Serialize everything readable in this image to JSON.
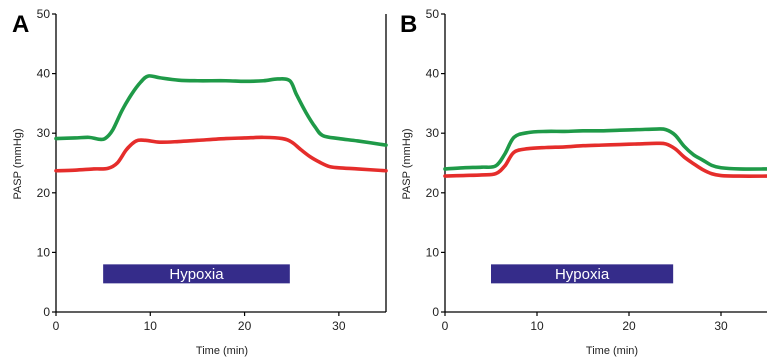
{
  "chart_data": [
    {
      "type": "line",
      "panel_label": "A",
      "xlabel": "Time (min)",
      "ylabel": "PASP (mmHg)",
      "xlim": [
        0,
        35
      ],
      "ylim": [
        0,
        50
      ],
      "xticks": [
        0,
        10,
        20,
        30
      ],
      "yticks": [
        0,
        10,
        20,
        30,
        40,
        50
      ],
      "grid": false,
      "series": [
        {
          "color": "#1f9a48",
          "x": [
            0,
            2,
            3.5,
            4.5,
            5.2,
            6,
            7,
            8,
            9,
            9.8,
            11,
            13,
            15,
            18,
            20,
            22,
            23.5,
            24.8,
            25.5,
            26.5,
            27.5,
            28.3,
            30,
            32,
            35
          ],
          "y": [
            29.1,
            29.2,
            29.3,
            29.0,
            29.1,
            30.5,
            33.8,
            36.5,
            38.6,
            39.6,
            39.3,
            38.9,
            38.8,
            38.8,
            38.7,
            38.8,
            39.1,
            38.8,
            36.5,
            33.5,
            31.0,
            29.6,
            29.1,
            28.7,
            28.0
          ]
        },
        {
          "color": "#e52d2b",
          "x": [
            0,
            2,
            4,
            5.5,
            6.5,
            7.5,
            8.5,
            9.5,
            11,
            13,
            15,
            18,
            20,
            22,
            24,
            25,
            26,
            27,
            28,
            29,
            30,
            32,
            35
          ],
          "y": [
            23.7,
            23.8,
            24.0,
            24.1,
            25.0,
            27.3,
            28.7,
            28.8,
            28.5,
            28.6,
            28.8,
            29.1,
            29.2,
            29.3,
            29.1,
            28.5,
            27.2,
            26.0,
            25.1,
            24.4,
            24.2,
            24.0,
            23.7
          ]
        }
      ],
      "annotations": [
        {
          "text": "Hypoxia",
          "x_start": 5,
          "x_end": 24.8,
          "y_center": 6.4,
          "color": "#352c8a"
        }
      ]
    },
    {
      "type": "line",
      "panel_label": "B",
      "xlabel": "Time (min)",
      "ylabel": "PASP (mmHg)",
      "xlim": [
        0,
        35
      ],
      "ylim": [
        0,
        50
      ],
      "xticks": [
        0,
        10,
        20,
        30
      ],
      "yticks": [
        0,
        10,
        20,
        30,
        40,
        50
      ],
      "grid": false,
      "series": [
        {
          "color": "#1f9a48",
          "x": [
            0,
            2,
            4,
            5.5,
            6.5,
            7.5,
            9,
            11,
            13,
            15,
            17,
            19,
            21,
            23,
            24,
            25,
            26,
            27,
            28,
            29,
            30,
            32,
            35
          ],
          "y": [
            24.0,
            24.2,
            24.3,
            24.5,
            26.5,
            29.3,
            30.1,
            30.3,
            30.3,
            30.4,
            30.4,
            30.5,
            30.6,
            30.7,
            30.6,
            29.7,
            27.8,
            26.4,
            25.5,
            24.6,
            24.2,
            24.0,
            24.0
          ]
        },
        {
          "color": "#e52d2b",
          "x": [
            0,
            2,
            4,
            5.5,
            6.5,
            7.5,
            9,
            11,
            13,
            15,
            17,
            19,
            21,
            23,
            24,
            25,
            26,
            27,
            28,
            29,
            30,
            32,
            35
          ],
          "y": [
            22.8,
            22.9,
            23.0,
            23.2,
            24.5,
            26.8,
            27.4,
            27.6,
            27.7,
            27.9,
            28.0,
            28.1,
            28.2,
            28.3,
            28.2,
            27.4,
            26.0,
            24.9,
            23.9,
            23.2,
            22.9,
            22.8,
            22.8
          ]
        }
      ],
      "annotations": [
        {
          "text": "Hypoxia",
          "x_start": 5,
          "x_end": 24.8,
          "y_center": 6.4,
          "color": "#352c8a"
        }
      ]
    }
  ]
}
